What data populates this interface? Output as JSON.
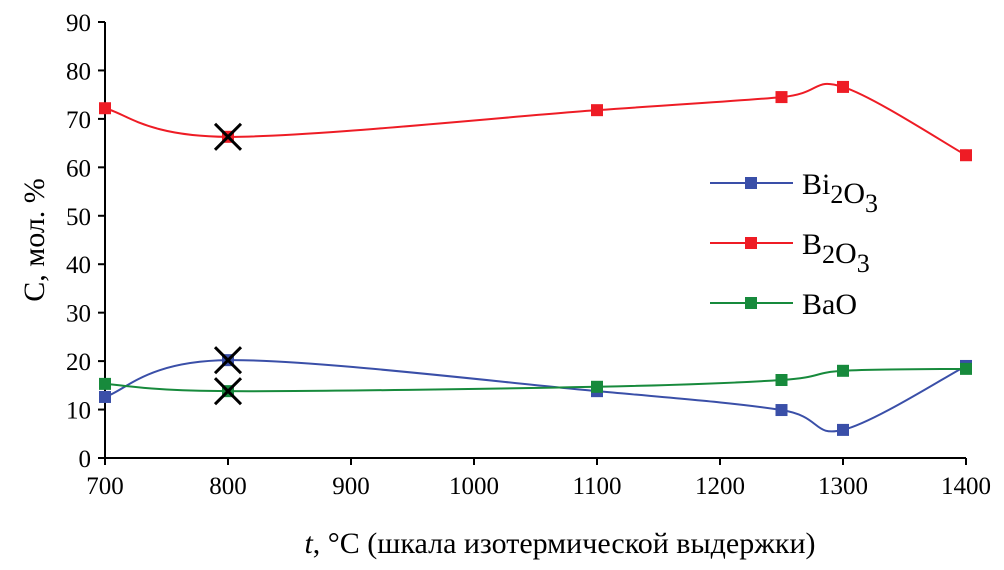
{
  "chart_data": {
    "type": "line",
    "xlabel": "t, °C (шкала изотермической выдержки)",
    "ylabel": "C, мол. %",
    "xlim": [
      700,
      1400
    ],
    "ylim": [
      0,
      90
    ],
    "xticks": [
      700,
      800,
      900,
      1000,
      1100,
      1200,
      1300,
      1400
    ],
    "yticks": [
      0,
      10,
      20,
      30,
      40,
      50,
      60,
      70,
      80,
      90
    ],
    "grid": false,
    "legend_position": "right",
    "smoothed": true,
    "x": [
      700,
      800,
      1100,
      1250,
      1300,
      1400
    ],
    "series": [
      {
        "name": "Bi2O3",
        "color": "#3a4fa8",
        "values": [
          12.6,
          20.2,
          13.8,
          9.9,
          5.8,
          19.0
        ]
      },
      {
        "name": "B2O3",
        "color": "#ee1c25",
        "values": [
          72.2,
          66.3,
          71.8,
          74.5,
          76.6,
          62.5
        ]
      },
      {
        "name": "BaO",
        "color": "#178a3c",
        "values": [
          15.3,
          13.8,
          14.7,
          16.1,
          18.0,
          18.4
        ]
      }
    ],
    "annotations": [
      {
        "marker": "cross",
        "x": 800,
        "y": 66.3
      },
      {
        "marker": "cross",
        "x": 800,
        "y": 20.2
      },
      {
        "marker": "cross",
        "x": 800,
        "y": 13.8
      }
    ]
  }
}
